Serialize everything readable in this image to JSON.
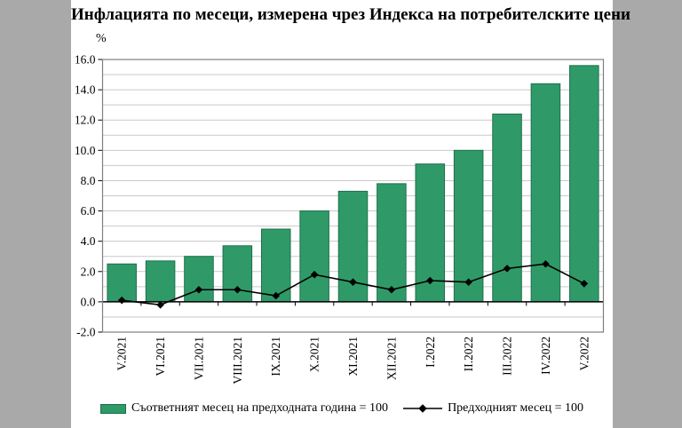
{
  "colors": {
    "bar": "#2f9a68",
    "bar_border": "#1e6f4a",
    "line": "#000000",
    "grid": "#c9c9c9",
    "frame": "#7f7f7f",
    "zero_axis": "#000000",
    "panel_background": "#ffffff",
    "side_strip_background": "#a9a9a9"
  },
  "chart_data": {
    "type": "bar",
    "title": "Инфлацията по месеци, измерена чрез Индекса на потребителските цени",
    "ylabel": "%",
    "xlabel": "",
    "ylim": [
      -2,
      16
    ],
    "y_major_step": 2,
    "y_minor_step": 1,
    "grid": true,
    "legend_position": "bottom",
    "y_tick_labels": [
      "16.0",
      "14.0",
      "12.0",
      "10.0",
      "8.0",
      "6.0",
      "4.0",
      "2.0",
      "0.0",
      "-2.0"
    ],
    "categories": [
      "V.2021",
      "VI.2021",
      "VII.2021",
      "VIII.2021",
      "IX.2021",
      "X.2021",
      "XI.2021",
      "XII.2021",
      "I.2022",
      "II.2022",
      "III.2022",
      "IV.2022",
      "V.2022"
    ],
    "series": [
      {
        "name": "Съответният месец на предходната година = 100",
        "type": "bar",
        "color": "#2f9a68",
        "values": [
          2.5,
          2.7,
          3.0,
          3.7,
          4.8,
          6.0,
          7.3,
          7.8,
          9.1,
          10.0,
          12.4,
          14.4,
          15.6
        ]
      },
      {
        "name": "Предходният месец = 100",
        "type": "line",
        "marker": "diamond",
        "color": "#000000",
        "values": [
          0.1,
          -0.2,
          0.8,
          0.8,
          0.4,
          1.8,
          1.3,
          0.8,
          1.4,
          1.3,
          2.2,
          2.5,
          1.2
        ]
      }
    ]
  }
}
